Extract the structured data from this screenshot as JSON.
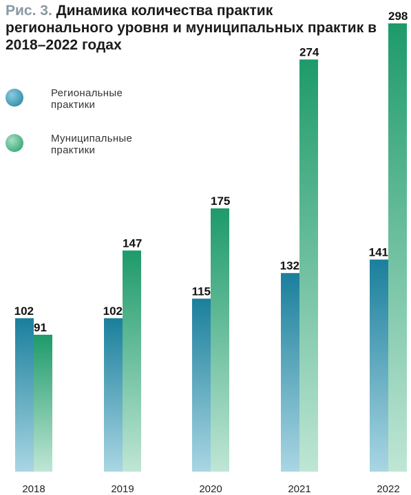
{
  "title_prefix": "Рис. 3.",
  "title_text": "Динамика количества практик регионального уровня и муниципальных практик в 2018–2022 годах",
  "chart_data": {
    "type": "bar",
    "categories": [
      "2018",
      "2019",
      "2020",
      "2021",
      "2022"
    ],
    "series": [
      {
        "name": "Региональные практики",
        "values": [
          102,
          102,
          115,
          132,
          141
        ],
        "color_top": "#1a7f9c",
        "color_bottom": "#a9d6e3"
      },
      {
        "name": "Муниципальные практики",
        "values": [
          91,
          147,
          175,
          274,
          298
        ],
        "color_top": "#1e9a6a",
        "color_bottom": "#bfe6d5"
      }
    ],
    "ylim": [
      0,
      298
    ],
    "grid": false,
    "legend_position": "top-left"
  }
}
